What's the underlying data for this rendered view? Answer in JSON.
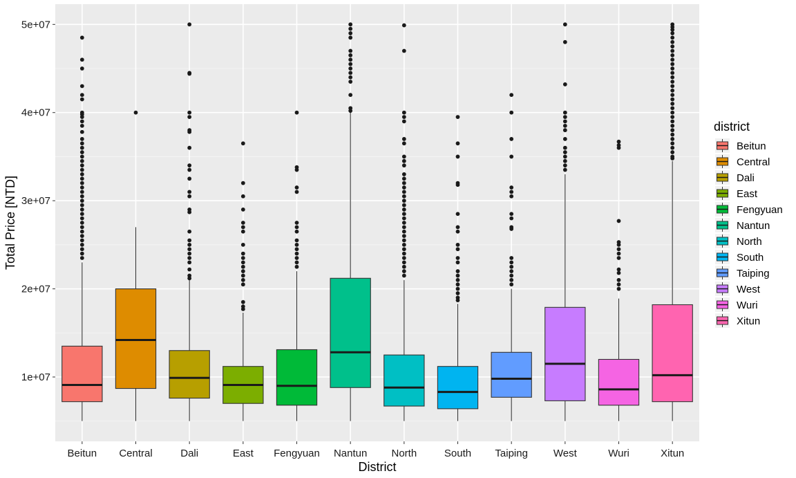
{
  "chart_data": {
    "type": "boxplot",
    "title": "",
    "xlabel": "District",
    "ylabel": "Total Price [NTD]",
    "ylim": [
      2700000,
      52300000
    ],
    "y_ticks": [
      10000000,
      20000000,
      30000000,
      40000000,
      50000000
    ],
    "y_tick_labels": [
      "1e+07",
      "2e+07",
      "3e+07",
      "4e+07",
      "5e+07"
    ],
    "grid": true,
    "legend": {
      "title": "district",
      "position": "right"
    },
    "categories": [
      "Beitun",
      "Central",
      "Dali",
      "East",
      "Fengyuan",
      "Nantun",
      "North",
      "South",
      "Taiping",
      "West",
      "Wuri",
      "Xitun"
    ],
    "colors": [
      "#F8766D",
      "#DE8C00",
      "#B79F00",
      "#7CAE00",
      "#00BA38",
      "#00C08B",
      "#00BFC4",
      "#00B4F0",
      "#619CFF",
      "#C77CFF",
      "#F564E3",
      "#FF64B0"
    ],
    "boxes": [
      {
        "district": "Beitun",
        "whisker_low": 5000000,
        "q1": 7200000,
        "median": 9100000,
        "q3": 13500000,
        "whisker_high": 23000000,
        "outliers": [
          48500000,
          46000000,
          45000000,
          43000000,
          42000000,
          41500000,
          40000000,
          39800000,
          39500000,
          39000000,
          38500000,
          37800000,
          37000000,
          36500000,
          36000000,
          35500000,
          35000000,
          34500000,
          34000000,
          33500000,
          33000000,
          32500000,
          32000000,
          31500000,
          31000000,
          30500000,
          30000000,
          29500000,
          29000000,
          28500000,
          28000000,
          27500000,
          27000000,
          26500000,
          26000000,
          25500000,
          25000000,
          24500000,
          24000000,
          23500000
        ]
      },
      {
        "district": "Central",
        "whisker_low": 5000000,
        "q1": 8700000,
        "median": 14200000,
        "q3": 20000000,
        "whisker_high": 27000000,
        "outliers": [
          40000000
        ]
      },
      {
        "district": "Dali",
        "whisker_low": 5000000,
        "q1": 7600000,
        "median": 9900000,
        "q3": 13000000,
        "whisker_high": 21000000,
        "outliers": [
          50000000,
          44500000,
          44400000,
          40000000,
          39500000,
          38000000,
          37800000,
          36000000,
          34000000,
          33500000,
          32500000,
          31000000,
          30500000,
          29000000,
          28700000,
          26500000,
          25500000,
          25000000,
          24500000,
          24000000,
          23500000,
          23000000,
          22200000,
          21500000,
          21200000
        ]
      },
      {
        "district": "East",
        "whisker_low": 5000000,
        "q1": 7000000,
        "median": 9100000,
        "q3": 11200000,
        "whisker_high": 17300000,
        "outliers": [
          36500000,
          32000000,
          30500000,
          29000000,
          27500000,
          27000000,
          26500000,
          25000000,
          24000000,
          23500000,
          23000000,
          22500000,
          22000000,
          21500000,
          21000000,
          20500000,
          18500000,
          18000000,
          17700000
        ]
      },
      {
        "district": "Fengyuan",
        "whisker_low": 5000000,
        "q1": 6800000,
        "median": 9000000,
        "q3": 13100000,
        "whisker_high": 22000000,
        "outliers": [
          40000000,
          33800000,
          33500000,
          31500000,
          31000000,
          27500000,
          27000000,
          26500000,
          25500000,
          25000000,
          24500000,
          24000000,
          23500000,
          23000000,
          22500000
        ]
      },
      {
        "district": "Nantun",
        "whisker_low": 5000000,
        "q1": 8800000,
        "median": 12800000,
        "q3": 21200000,
        "whisker_high": 40000000,
        "outliers": [
          50000000,
          49500000,
          49000000,
          48500000,
          47000000,
          46500000,
          46000000,
          45500000,
          45000000,
          44500000,
          44000000,
          43500000,
          42000000,
          40500000,
          40200000
        ]
      },
      {
        "district": "North",
        "whisker_low": 5000000,
        "q1": 6700000,
        "median": 8800000,
        "q3": 12500000,
        "whisker_high": 21000000,
        "outliers": [
          49900000,
          47000000,
          40000000,
          39500000,
          39000000,
          37000000,
          36500000,
          35000000,
          34500000,
          34000000,
          33000000,
          32500000,
          32000000,
          31500000,
          31000000,
          30500000,
          30000000,
          29500000,
          29000000,
          28500000,
          28000000,
          27500000,
          27000000,
          26500000,
          26000000,
          25500000,
          25000000,
          24500000,
          24000000,
          23500000,
          23000000,
          22500000,
          22000000,
          21500000
        ]
      },
      {
        "district": "South",
        "whisker_low": 5000000,
        "q1": 6400000,
        "median": 8300000,
        "q3": 11200000,
        "whisker_high": 18300000,
        "outliers": [
          39500000,
          36500000,
          35000000,
          32000000,
          31800000,
          28500000,
          27000000,
          26500000,
          25000000,
          24500000,
          23500000,
          23000000,
          22000000,
          21500000,
          21000000,
          20500000,
          20000000,
          19500000,
          19000000,
          18700000
        ]
      },
      {
        "district": "Taiping",
        "whisker_low": 5000000,
        "q1": 7700000,
        "median": 9800000,
        "q3": 12800000,
        "whisker_high": 20000000,
        "outliers": [
          42000000,
          40000000,
          37000000,
          35000000,
          31500000,
          31000000,
          30500000,
          28500000,
          28000000,
          27000000,
          26800000,
          23500000,
          23000000,
          22500000,
          22000000,
          21500000,
          21000000,
          20500000
        ]
      },
      {
        "district": "West",
        "whisker_low": 5000000,
        "q1": 7300000,
        "median": 11500000,
        "q3": 17900000,
        "whisker_high": 33000000,
        "outliers": [
          50000000,
          48000000,
          43200000,
          40000000,
          39500000,
          39000000,
          38500000,
          38000000,
          37000000,
          36000000,
          35500000,
          35000000,
          34500000,
          34000000,
          33500000
        ]
      },
      {
        "district": "Wuri",
        "whisker_low": 5000000,
        "q1": 6800000,
        "median": 8600000,
        "q3": 12000000,
        "whisker_high": 18900000,
        "outliers": [
          36700000,
          36300000,
          36000000,
          27700000,
          25300000,
          25000000,
          24500000,
          24000000,
          23500000,
          22200000,
          21800000,
          21000000,
          20500000,
          20000000
        ]
      },
      {
        "district": "Xitun",
        "whisker_low": 5000000,
        "q1": 7200000,
        "median": 10200000,
        "q3": 18200000,
        "whisker_high": 34500000,
        "outliers": [
          50000000,
          49700000,
          49400000,
          49000000,
          48500000,
          48000000,
          47500000,
          47000000,
          46500000,
          46000000,
          45500000,
          45000000,
          44500000,
          44000000,
          43500000,
          43000000,
          42500000,
          42000000,
          41500000,
          41000000,
          40500000,
          40000000,
          39500000,
          39000000,
          38500000,
          38000000,
          37500000,
          37000000,
          36500000,
          36000000,
          35500000,
          35000000,
          34800000
        ]
      }
    ]
  }
}
